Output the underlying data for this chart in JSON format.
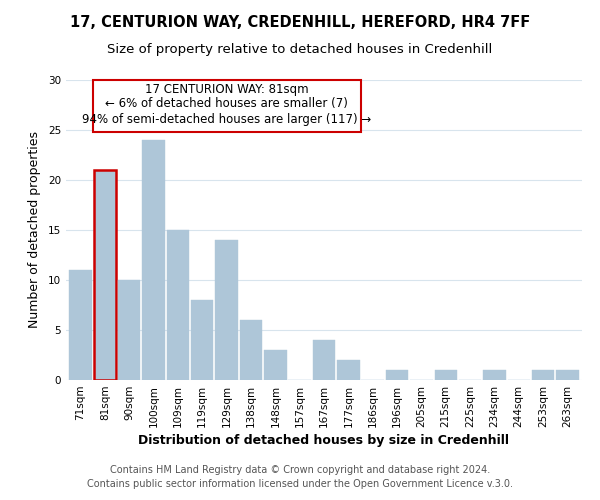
{
  "title1": "17, CENTURION WAY, CREDENHILL, HEREFORD, HR4 7FF",
  "title2": "Size of property relative to detached houses in Credenhill",
  "xlabel": "Distribution of detached houses by size in Credenhill",
  "ylabel": "Number of detached properties",
  "bar_labels": [
    "71sqm",
    "81sqm",
    "90sqm",
    "100sqm",
    "109sqm",
    "119sqm",
    "129sqm",
    "138sqm",
    "148sqm",
    "157sqm",
    "167sqm",
    "177sqm",
    "186sqm",
    "196sqm",
    "205sqm",
    "215sqm",
    "225sqm",
    "234sqm",
    "244sqm",
    "253sqm",
    "263sqm"
  ],
  "bar_values": [
    11,
    21,
    10,
    24,
    15,
    8,
    14,
    6,
    3,
    0,
    4,
    2,
    0,
    1,
    0,
    1,
    0,
    1,
    0,
    1,
    1
  ],
  "bar_color": "#aec6d8",
  "highlight_bar_index": 1,
  "highlight_edge_color": "#cc0000",
  "highlight_edge_width": 1.8,
  "ylim": [
    0,
    30
  ],
  "yticks": [
    0,
    5,
    10,
    15,
    20,
    25,
    30
  ],
  "annotation_line1": "17 CENTURION WAY: 81sqm",
  "annotation_line2": "← 6% of detached houses are smaller (7)",
  "annotation_line3": "94% of semi-detached houses are larger (117) →",
  "footer_text": "Contains HM Land Registry data © Crown copyright and database right 2024.\nContains public sector information licensed under the Open Government Licence v.3.0.",
  "background_color": "#ffffff",
  "grid_color": "#d8e4ed",
  "title_fontsize": 10.5,
  "subtitle_fontsize": 9.5,
  "axis_label_fontsize": 9,
  "tick_fontsize": 7.5,
  "footer_fontsize": 7,
  "annotation_fontsize": 8.5
}
